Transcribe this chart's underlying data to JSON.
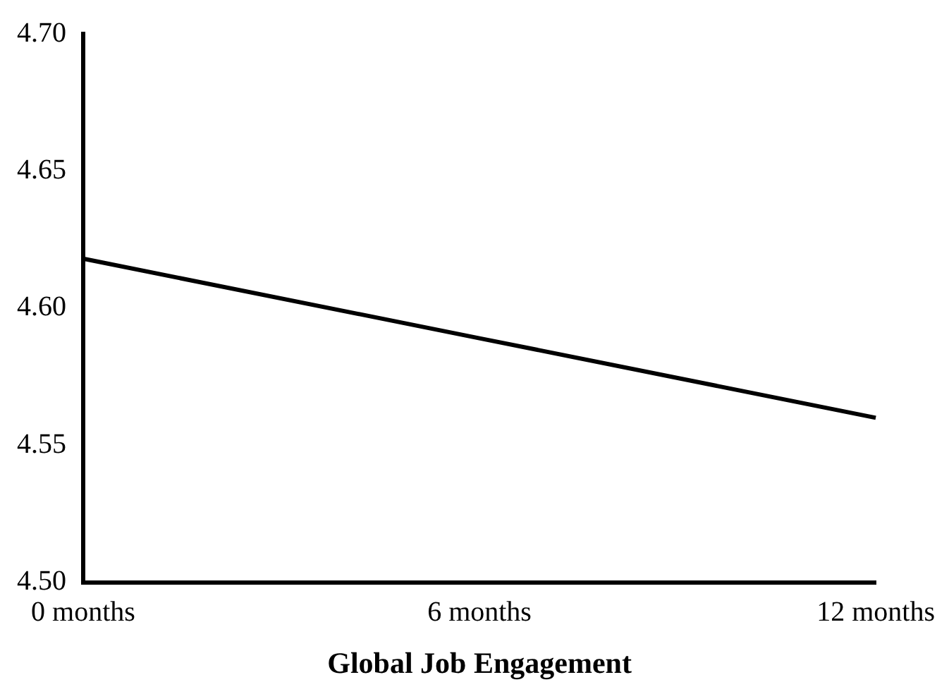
{
  "chart_data": {
    "type": "line",
    "xlabel": "Global Job Engagement",
    "categories": [
      "0 months",
      "6 months",
      "12 months"
    ],
    "series": [
      {
        "color": "#000000",
        "values": [
          4.618,
          4.589,
          4.56
        ]
      }
    ],
    "ylim": [
      4.5,
      4.7
    ],
    "yticks": [
      {
        "value": 4.5,
        "label": "4.50"
      },
      {
        "value": 4.55,
        "label": "4.55"
      },
      {
        "value": 4.6,
        "label": "4.60"
      },
      {
        "value": 4.65,
        "label": "4.65"
      },
      {
        "value": 4.7,
        "label": "4.70"
      }
    ],
    "grid": false,
    "legend": false,
    "marker": "none",
    "line_style": "solid"
  }
}
